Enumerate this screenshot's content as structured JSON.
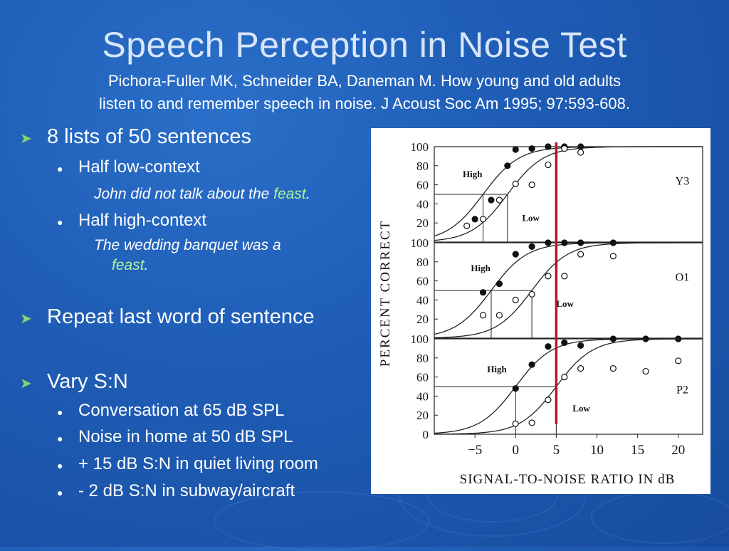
{
  "slide": {
    "title": "Speech Perception in Noise Test",
    "subtitle_line1": "Pichora-Fuller MK, Schneider BA, Daneman M. How young and old adults",
    "subtitle_line2": "listen to and remember speech in noise. J Acoust Soc Am 1995; 97:593-608."
  },
  "bullets": {
    "b1": "8 lists of 50 sentences",
    "b1_sub1": "Half low-context",
    "b1_ex1_pre": "John did not talk about the ",
    "b1_ex1_word": "feast",
    "b1_ex1_post": ".",
    "b1_sub2": "Half high-context",
    "b1_ex2_line1": "The wedding banquet was a",
    "b1_ex2_word": "feast",
    "b1_ex2_post": ".",
    "b2": "Repeat last word of sentence",
    "b3": "Vary S:N",
    "b3_sub1": "Conversation at 65 dB SPL",
    "b3_sub2": "Noise in home at 50 dB SPL",
    "b3_sub3": "+ 15 dB S:N in quiet living room",
    "b3_sub4": "- 2 dB S:N in subway/aircraft"
  },
  "colors": {
    "background": "#1f5db6",
    "bullet_arrow": "#8ad36d",
    "highlight": "#aef59a",
    "marker_line": "#b0182a"
  },
  "chart_data": {
    "type": "scatter",
    "xlabel": "SIGNAL-TO-NOISE RATIO IN dB",
    "ylabel": "PERCENT CORRECT",
    "x_ticks": [
      -5,
      0,
      5,
      10,
      15,
      20
    ],
    "y_ticks": [
      0,
      20,
      40,
      60,
      80,
      100
    ],
    "xlim": [
      -10,
      23
    ],
    "ylim": [
      0,
      100
    ],
    "marker_line_x": 5,
    "panels": [
      {
        "name": "Y3",
        "series": [
          {
            "name": "High",
            "filled": true,
            "x": [
              -5,
              -3,
              -1,
              0,
              2,
              4,
              6,
              8
            ],
            "y": [
              24,
              44,
              80,
              97,
              98,
              100,
              100,
              100
            ],
            "threshold": -4
          },
          {
            "name": "Low",
            "filled": false,
            "x": [
              -6,
              -4,
              -2,
              0,
              2,
              4,
              6,
              8
            ],
            "y": [
              17,
              24,
              44,
              61,
              60,
              81,
              98,
              94
            ],
            "threshold": -1
          }
        ]
      },
      {
        "name": "O1",
        "series": [
          {
            "name": "High",
            "filled": true,
            "x": [
              -4,
              -2,
              0,
              2,
              4,
              6,
              8,
              12
            ],
            "y": [
              48,
              57,
              88,
              96,
              100,
              100,
              100,
              100
            ],
            "threshold": -3
          },
          {
            "name": "Low",
            "filled": false,
            "x": [
              -4,
              -2,
              0,
              2,
              4,
              6,
              8,
              12
            ],
            "y": [
              24,
              24,
              40,
              46,
              65,
              65,
              88,
              86
            ],
            "threshold": 2
          }
        ]
      },
      {
        "name": "P2",
        "series": [
          {
            "name": "High",
            "filled": true,
            "x": [
              0,
              2,
              4,
              6,
              8,
              12,
              16,
              20
            ],
            "y": [
              48,
              73,
              92,
              96,
              93,
              100,
              100,
              100
            ],
            "threshold": 0
          },
          {
            "name": "Low",
            "filled": false,
            "x": [
              0,
              2,
              4,
              6,
              8,
              12,
              16,
              20
            ],
            "y": [
              11,
              12,
              36,
              60,
              69,
              69,
              66,
              77
            ],
            "threshold": 5
          }
        ]
      }
    ]
  }
}
